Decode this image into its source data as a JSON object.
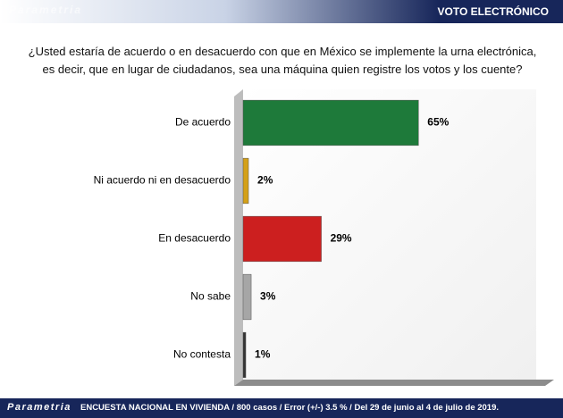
{
  "header": {
    "title": "VOTO ELECTRÓNICO",
    "brand": "Parametria"
  },
  "chart_data": {
    "type": "bar",
    "orientation": "horizontal",
    "title": "¿Usted estaría de acuerdo o en desacuerdo con que en México se implemente la urna electrónica, es decir, que en lugar de ciudadanos, sea una máquina quien registre los votos y los cuente?",
    "categories": [
      "De acuerdo",
      "Ni acuerdo ni en desacuerdo",
      "En desacuerdo",
      "No sabe",
      "No contesta"
    ],
    "values": [
      65,
      2,
      29,
      3,
      1
    ],
    "value_labels": [
      "65%",
      "2%",
      "29%",
      "3%",
      "1%"
    ],
    "colors": [
      "#1e7a3a",
      "#d4a017",
      "#cc1f1f",
      "#a6a6a6",
      "#333333"
    ]
  },
  "footer": {
    "brand": "Parametria",
    "note": "ENCUESTA NACIONAL EN VIVIENDA / 800 casos / Error (+/-) 3.5 % / Del 29 de junio al 4 de julio de 2019."
  }
}
